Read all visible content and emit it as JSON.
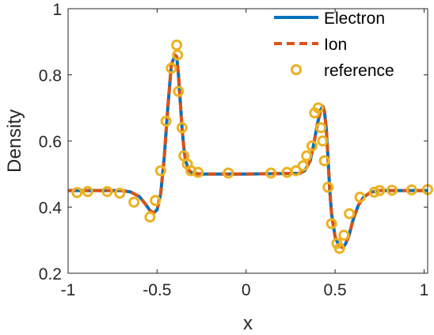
{
  "chart_data": {
    "type": "line",
    "title": "",
    "xlabel": "x",
    "ylabel": "Density",
    "xlim": [
      -1,
      1.02
    ],
    "ylim": [
      0.2,
      1
    ],
    "xticks": [
      -1,
      -0.5,
      0,
      0.5,
      1
    ],
    "xtick_labels": [
      "-1",
      "-0.5",
      "0",
      "0.5",
      "1"
    ],
    "yticks": [
      0.2,
      0.4,
      0.6,
      0.8,
      1
    ],
    "ytick_labels": [
      "0.2",
      "0.4",
      "0.6",
      "0.8",
      "1"
    ],
    "grid": false,
    "legend_position": "top-right",
    "series": [
      {
        "name": "Electron",
        "style": "solid",
        "color": "#0072BD",
        "x": [
          -1,
          -0.7,
          -0.65,
          -0.6,
          -0.57,
          -0.54,
          -0.52,
          -0.5,
          -0.48,
          -0.46,
          -0.44,
          -0.42,
          -0.4,
          -0.39,
          -0.38,
          -0.37,
          -0.36,
          -0.35,
          -0.34,
          -0.32,
          -0.3,
          -0.25,
          0,
          0.3,
          0.33,
          0.36,
          0.38,
          0.4,
          0.42,
          0.43,
          0.44,
          0.45,
          0.46,
          0.47,
          0.48,
          0.5,
          0.52,
          0.54,
          0.55,
          0.56,
          0.58,
          0.6,
          0.63,
          0.66,
          0.7,
          0.75,
          0.8,
          1.02
        ],
        "y": [
          0.45,
          0.45,
          0.446,
          0.432,
          0.412,
          0.39,
          0.382,
          0.392,
          0.44,
          0.55,
          0.7,
          0.83,
          0.86,
          0.855,
          0.8,
          0.72,
          0.64,
          0.58,
          0.54,
          0.51,
          0.502,
          0.5,
          0.5,
          0.502,
          0.51,
          0.54,
          0.59,
          0.65,
          0.695,
          0.705,
          0.69,
          0.64,
          0.55,
          0.45,
          0.38,
          0.31,
          0.285,
          0.278,
          0.282,
          0.29,
          0.318,
          0.36,
          0.405,
          0.43,
          0.445,
          0.45,
          0.45,
          0.45
        ]
      },
      {
        "name": "Ion",
        "style": "dashed",
        "color": "#D95319",
        "x": [
          -1,
          -0.7,
          -0.65,
          -0.6,
          -0.57,
          -0.54,
          -0.52,
          -0.5,
          -0.48,
          -0.46,
          -0.44,
          -0.42,
          -0.4,
          -0.39,
          -0.38,
          -0.37,
          -0.36,
          -0.35,
          -0.34,
          -0.32,
          -0.3,
          -0.25,
          0,
          0.3,
          0.33,
          0.36,
          0.38,
          0.4,
          0.42,
          0.43,
          0.44,
          0.45,
          0.46,
          0.47,
          0.48,
          0.5,
          0.52,
          0.54,
          0.55,
          0.56,
          0.58,
          0.6,
          0.63,
          0.66,
          0.7,
          0.75,
          0.8,
          1.02
        ],
        "y": [
          0.45,
          0.45,
          0.446,
          0.432,
          0.412,
          0.39,
          0.382,
          0.392,
          0.44,
          0.55,
          0.7,
          0.83,
          0.86,
          0.855,
          0.8,
          0.72,
          0.64,
          0.58,
          0.54,
          0.51,
          0.502,
          0.5,
          0.5,
          0.502,
          0.51,
          0.54,
          0.59,
          0.65,
          0.695,
          0.705,
          0.69,
          0.64,
          0.55,
          0.45,
          0.38,
          0.31,
          0.285,
          0.278,
          0.282,
          0.29,
          0.318,
          0.36,
          0.405,
          0.43,
          0.445,
          0.45,
          0.45,
          0.45
        ]
      },
      {
        "name": "reference",
        "style": "markers",
        "color": "#EDB120",
        "x": [
          -0.95,
          -0.89,
          -0.78,
          -0.71,
          -0.63,
          -0.54,
          -0.51,
          -0.48,
          -0.45,
          -0.42,
          -0.39,
          -0.385,
          -0.38,
          -0.36,
          -0.35,
          -0.33,
          -0.31,
          -0.27,
          -0.1,
          0.14,
          0.23,
          0.28,
          0.32,
          0.34,
          0.37,
          0.385,
          0.405,
          0.42,
          0.43,
          0.44,
          0.46,
          0.48,
          0.51,
          0.525,
          0.55,
          0.58,
          0.64,
          0.72,
          0.75,
          0.82,
          0.93,
          1.02
        ],
        "y": [
          0.444,
          0.447,
          0.447,
          0.442,
          0.415,
          0.37,
          0.42,
          0.51,
          0.66,
          0.82,
          0.89,
          0.86,
          0.75,
          0.64,
          0.555,
          0.53,
          0.51,
          0.505,
          0.503,
          0.503,
          0.505,
          0.51,
          0.525,
          0.555,
          0.585,
          0.685,
          0.7,
          0.64,
          0.6,
          0.54,
          0.46,
          0.35,
          0.29,
          0.275,
          0.315,
          0.38,
          0.43,
          0.445,
          0.45,
          0.451,
          0.452,
          0.453
        ]
      }
    ]
  }
}
